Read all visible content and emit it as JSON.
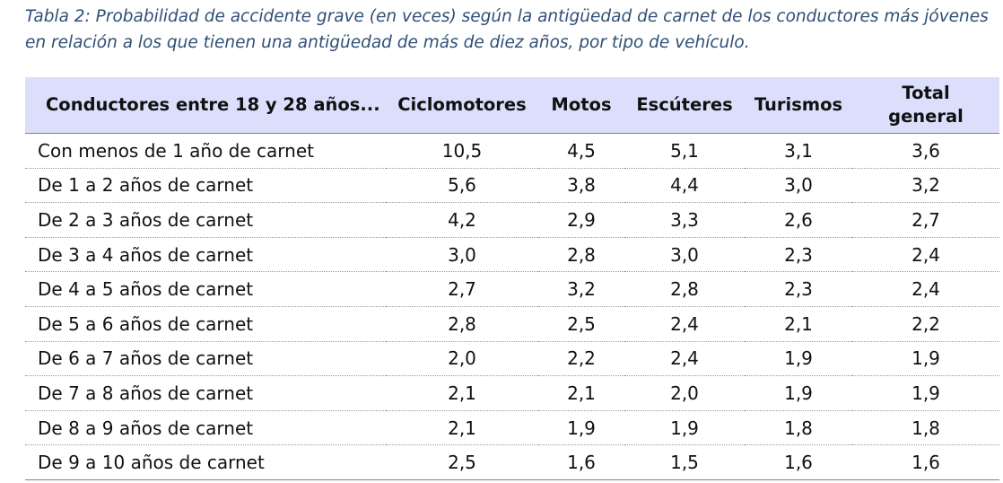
{
  "caption": {
    "line1": "Tabla 2: Probabilidad de accidente grave (en veces) según la antigüedad de carnet de los conductores más jóvenes",
    "line2": "en relación a los que tienen una antigüedad de más de diez años, por tipo de vehículo."
  },
  "table": {
    "headers": {
      "group": "Conductores entre 18 y 28 años...",
      "ciclomotores": "Ciclomotores",
      "motos": "Motos",
      "escuteres": "Escúteres",
      "turismos": "Turismos",
      "total_line1": "Total",
      "total_line2": "general"
    },
    "rows": [
      {
        "label": "Con menos de 1 año de carnet",
        "ciclomotores": "10,5",
        "motos": "4,5",
        "escuteres": "5,1",
        "turismos": "3,1",
        "total": "3,6"
      },
      {
        "label": "De 1 a 2 años de carnet",
        "ciclomotores": "5,6",
        "motos": "3,8",
        "escuteres": "4,4",
        "turismos": "3,0",
        "total": "3,2"
      },
      {
        "label": "De 2 a 3 años de carnet",
        "ciclomotores": "4,2",
        "motos": "2,9",
        "escuteres": "3,3",
        "turismos": "2,6",
        "total": "2,7"
      },
      {
        "label": "De 3 a 4 años de carnet",
        "ciclomotores": "3,0",
        "motos": "2,8",
        "escuteres": "3,0",
        "turismos": "2,3",
        "total": "2,4"
      },
      {
        "label": "De 4 a 5 años de carnet",
        "ciclomotores": "2,7",
        "motos": "3,2",
        "escuteres": "2,8",
        "turismos": "2,3",
        "total": "2,4"
      },
      {
        "label": "De 5 a 6 años de carnet",
        "ciclomotores": "2,8",
        "motos": "2,5",
        "escuteres": "2,4",
        "turismos": "2,1",
        "total": "2,2"
      },
      {
        "label": "De 6 a 7 años de carnet",
        "ciclomotores": "2,0",
        "motos": "2,2",
        "escuteres": "2,4",
        "turismos": "1,9",
        "total": "1,9"
      },
      {
        "label": "De 7 a 8 años de carnet",
        "ciclomotores": "2,1",
        "motos": "2,1",
        "escuteres": "2,0",
        "turismos": "1,9",
        "total": "1,9"
      },
      {
        "label": "De 8 a 9 años de carnet",
        "ciclomotores": "2,1",
        "motos": "1,9",
        "escuteres": "1,9",
        "turismos": "1,8",
        "total": "1,8"
      },
      {
        "label": "De 9 a 10 años de carnet",
        "ciclomotores": "2,5",
        "motos": "1,6",
        "escuteres": "1,5",
        "turismos": "1,6",
        "total": "1,6"
      }
    ]
  },
  "colors": {
    "caption_text": "#2f4f76",
    "header_background": "#dcdffb"
  }
}
